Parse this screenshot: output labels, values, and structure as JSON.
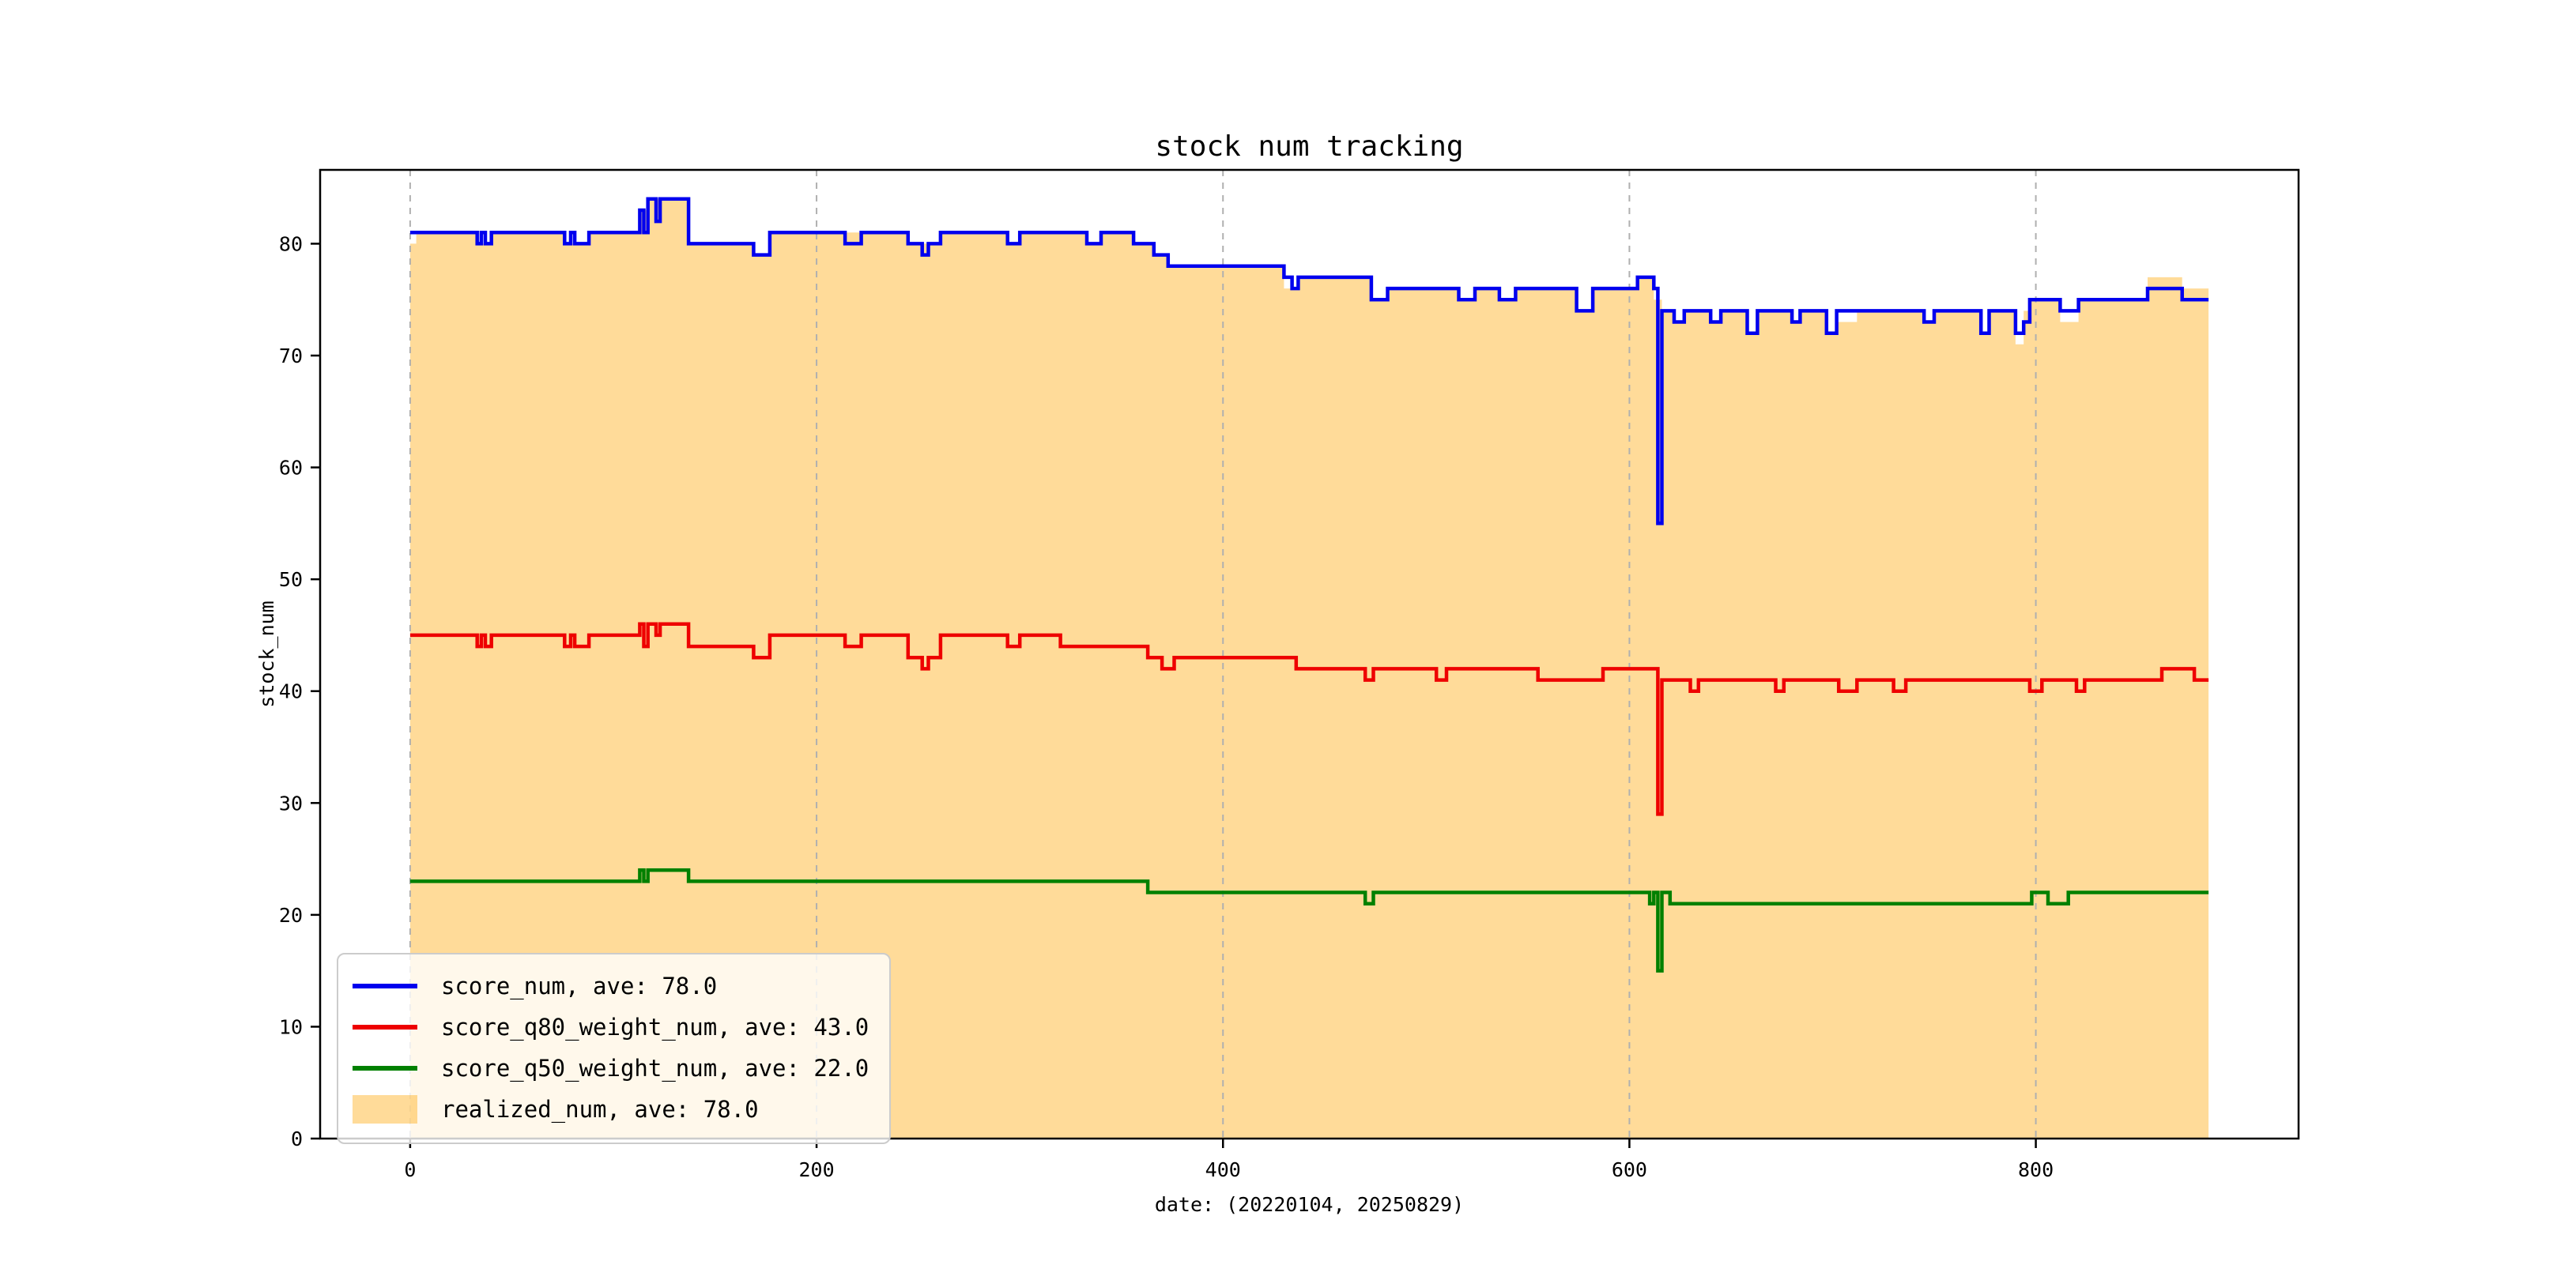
{
  "figure": {
    "background": "#ffffff",
    "frame_color": "#000000",
    "grid_color": "#b0b0b0"
  },
  "chart_data": {
    "type": "line",
    "title": "stock num tracking",
    "xlabel": "date: (20220104, 20250829)",
    "ylabel": "stock_num",
    "xlim": [
      -44.3,
      929.3
    ],
    "ylim": [
      0,
      86.6
    ],
    "x_data_range": [
      0,
      885
    ],
    "xticks": [
      0,
      200,
      400,
      600,
      800
    ],
    "yticks": [
      0,
      10,
      20,
      30,
      40,
      50,
      60,
      70,
      80
    ],
    "grid": {
      "axis": "x",
      "style": "dashed",
      "color": "#b0b0b0"
    },
    "legend_position": "lower left",
    "series": [
      {
        "name": "score_num, ave: 78.0",
        "kind": "line",
        "color": "#0000ee",
        "points": [
          [
            0,
            81
          ],
          [
            33,
            80
          ],
          [
            35,
            81
          ],
          [
            37,
            80
          ],
          [
            40,
            81
          ],
          [
            76,
            80
          ],
          [
            79,
            81
          ],
          [
            81,
            80
          ],
          [
            88,
            81
          ],
          [
            113,
            83
          ],
          [
            115,
            81
          ],
          [
            117,
            84
          ],
          [
            121,
            82
          ],
          [
            123,
            84
          ],
          [
            137,
            80
          ],
          [
            169,
            79
          ],
          [
            177,
            81
          ],
          [
            214,
            80
          ],
          [
            222,
            81
          ],
          [
            245,
            80
          ],
          [
            252,
            79
          ],
          [
            255,
            80
          ],
          [
            261,
            81
          ],
          [
            294,
            80
          ],
          [
            300,
            81
          ],
          [
            333,
            80
          ],
          [
            340,
            81
          ],
          [
            356,
            80
          ],
          [
            366,
            79
          ],
          [
            373,
            78
          ],
          [
            430,
            77
          ],
          [
            434,
            76
          ],
          [
            437,
            77
          ],
          [
            473,
            75
          ],
          [
            481,
            76
          ],
          [
            516,
            75
          ],
          [
            524,
            76
          ],
          [
            536,
            75
          ],
          [
            544,
            76
          ],
          [
            574,
            74
          ],
          [
            582,
            76
          ],
          [
            604,
            77
          ],
          [
            612,
            76
          ],
          [
            614,
            55
          ],
          [
            616,
            74
          ],
          [
            622,
            73
          ],
          [
            627,
            74
          ],
          [
            640,
            73
          ],
          [
            645,
            74
          ],
          [
            658,
            72
          ],
          [
            663,
            74
          ],
          [
            680,
            73
          ],
          [
            684,
            74
          ],
          [
            697,
            72
          ],
          [
            702,
            74
          ],
          [
            745,
            73
          ],
          [
            750,
            74
          ],
          [
            773,
            72
          ],
          [
            777,
            74
          ],
          [
            790,
            72
          ],
          [
            794,
            73
          ],
          [
            797,
            75
          ],
          [
            812,
            74
          ],
          [
            821,
            75
          ],
          [
            855,
            76
          ],
          [
            872,
            75
          ],
          [
            885,
            75
          ]
        ]
      },
      {
        "name": "score_q80_weight_num, ave: 43.0",
        "kind": "line",
        "color": "#ee0000",
        "points": [
          [
            0,
            45
          ],
          [
            33,
            44
          ],
          [
            35,
            45
          ],
          [
            37,
            44
          ],
          [
            40,
            45
          ],
          [
            76,
            44
          ],
          [
            79,
            45
          ],
          [
            81,
            44
          ],
          [
            88,
            45
          ],
          [
            113,
            46
          ],
          [
            115,
            44
          ],
          [
            117,
            46
          ],
          [
            121,
            45
          ],
          [
            123,
            46
          ],
          [
            137,
            44
          ],
          [
            169,
            43
          ],
          [
            177,
            45
          ],
          [
            214,
            44
          ],
          [
            222,
            45
          ],
          [
            245,
            43
          ],
          [
            252,
            42
          ],
          [
            255,
            43
          ],
          [
            261,
            45
          ],
          [
            294,
            44
          ],
          [
            300,
            45
          ],
          [
            320,
            44
          ],
          [
            363,
            43
          ],
          [
            370,
            42
          ],
          [
            376,
            43
          ],
          [
            436,
            42
          ],
          [
            470,
            41
          ],
          [
            474,
            42
          ],
          [
            505,
            41
          ],
          [
            510,
            42
          ],
          [
            555,
            41
          ],
          [
            587,
            42
          ],
          [
            614,
            29
          ],
          [
            616,
            41
          ],
          [
            630,
            40
          ],
          [
            634,
            41
          ],
          [
            672,
            40
          ],
          [
            676,
            41
          ],
          [
            703,
            40
          ],
          [
            712,
            41
          ],
          [
            730,
            40
          ],
          [
            736,
            41
          ],
          [
            797,
            40
          ],
          [
            803,
            41
          ],
          [
            820,
            40
          ],
          [
            824,
            41
          ],
          [
            862,
            42
          ],
          [
            878,
            41
          ],
          [
            885,
            41
          ]
        ]
      },
      {
        "name": "score_q50_weight_num, ave: 22.0",
        "kind": "line",
        "color": "#008000",
        "points": [
          [
            0,
            23
          ],
          [
            113,
            24
          ],
          [
            115,
            23
          ],
          [
            117,
            24
          ],
          [
            137,
            23
          ],
          [
            363,
            22
          ],
          [
            470,
            21
          ],
          [
            474,
            22
          ],
          [
            610,
            21
          ],
          [
            612,
            22
          ],
          [
            614,
            15
          ],
          [
            616,
            22
          ],
          [
            620,
            21
          ],
          [
            798,
            22
          ],
          [
            806,
            21
          ],
          [
            816,
            22
          ],
          [
            885,
            22
          ]
        ]
      },
      {
        "name": "realized_num, ave: 78.0",
        "kind": "area",
        "color": "#ffa500",
        "alpha": 0.4,
        "points": [
          [
            0,
            80
          ],
          [
            3,
            81
          ],
          [
            33,
            80
          ],
          [
            40,
            81
          ],
          [
            76,
            80
          ],
          [
            88,
            81
          ],
          [
            113,
            83
          ],
          [
            117,
            84
          ],
          [
            137,
            80
          ],
          [
            169,
            79
          ],
          [
            177,
            81
          ],
          [
            214,
            81
          ],
          [
            245,
            80
          ],
          [
            261,
            81
          ],
          [
            294,
            80
          ],
          [
            300,
            81
          ],
          [
            333,
            80
          ],
          [
            340,
            81
          ],
          [
            356,
            80
          ],
          [
            366,
            79
          ],
          [
            373,
            78
          ],
          [
            430,
            76
          ],
          [
            437,
            77
          ],
          [
            473,
            75
          ],
          [
            481,
            76
          ],
          [
            516,
            75
          ],
          [
            524,
            76
          ],
          [
            536,
            75
          ],
          [
            544,
            76
          ],
          [
            574,
            74
          ],
          [
            582,
            76
          ],
          [
            604,
            77
          ],
          [
            612,
            75
          ],
          [
            616,
            74
          ],
          [
            622,
            73
          ],
          [
            627,
            74
          ],
          [
            640,
            73
          ],
          [
            645,
            74
          ],
          [
            658,
            72
          ],
          [
            663,
            74
          ],
          [
            680,
            73
          ],
          [
            684,
            74
          ],
          [
            697,
            72
          ],
          [
            702,
            73
          ],
          [
            712,
            74
          ],
          [
            745,
            73
          ],
          [
            750,
            74
          ],
          [
            773,
            72
          ],
          [
            777,
            74
          ],
          [
            790,
            71
          ],
          [
            794,
            74
          ],
          [
            797,
            75
          ],
          [
            812,
            73
          ],
          [
            821,
            75
          ],
          [
            855,
            77
          ],
          [
            872,
            76
          ],
          [
            885,
            76
          ]
        ]
      }
    ]
  }
}
